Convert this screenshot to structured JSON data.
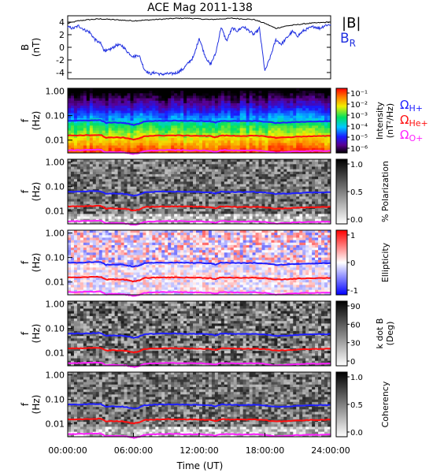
{
  "title": "ACE Mag 2011-138",
  "x_axis": {
    "label": "Time (UT)",
    "ticks": [
      "00:00:00",
      "06:00:00",
      "12:00:00",
      "18:00:00",
      "24:00:00"
    ],
    "range_hours": [
      0,
      24
    ]
  },
  "freq_axis": {
    "label_f": "f",
    "label_unit": "(Hz)",
    "ticks": [
      "1.00",
      "0.10",
      "0.01"
    ],
    "scale": "log",
    "range_hz": [
      0.003,
      1.3
    ]
  },
  "gyro_labels": {
    "h": "Ω",
    "h_sub": "H+",
    "he": "Ω",
    "he_sub": "He+",
    "o": "Ω",
    "o_sub": "O+"
  },
  "colors": {
    "h": "#2020ff",
    "he": "#ff1010",
    "o": "#ff20ff",
    "b_total": "#000000",
    "b_r": "#2030e0"
  },
  "chart_data": [
    {
      "type": "line",
      "ylabel_main": "B",
      "ylabel_unit": "(nT)",
      "ylim": [
        -5,
        5
      ],
      "yticks": [
        "4",
        "2",
        "0",
        "-2",
        "-4"
      ],
      "legend": [
        "|B|",
        "B"
      ],
      "legend_sub": "R",
      "series": [
        {
          "name": "|B|",
          "x_hours": [
            0,
            1,
            2,
            3,
            4,
            5,
            6,
            7,
            8,
            9,
            10,
            11,
            12,
            13,
            14,
            15,
            16,
            17,
            18,
            19,
            20,
            21,
            22,
            23,
            24
          ],
          "values": [
            3.8,
            4.2,
            4.4,
            4.5,
            4.4,
            4.3,
            4.2,
            4.3,
            4.4,
            4.5,
            4.6,
            4.6,
            4.5,
            4.4,
            4.5,
            4.6,
            4.5,
            4.4,
            3.8,
            3.0,
            3.4,
            3.6,
            3.8,
            3.9,
            4.0
          ]
        },
        {
          "name": "B_R",
          "x_hours": [
            0,
            0.5,
            1,
            1.5,
            2,
            2.5,
            3,
            3.3,
            3.6,
            4,
            4.5,
            5,
            5.5,
            6,
            6.5,
            7,
            7.5,
            8,
            8.5,
            9,
            9.5,
            10,
            10.5,
            11,
            11.5,
            12,
            12.5,
            13,
            13.5,
            14,
            14.5,
            15,
            15.5,
            16,
            16.5,
            17,
            17.5,
            18,
            18.5,
            19,
            19.5,
            20,
            20.5,
            21,
            21.5,
            22,
            22.5,
            23,
            23.5,
            24
          ],
          "values": [
            3.2,
            3.0,
            3.4,
            2.8,
            2.4,
            1.2,
            0.6,
            -0.4,
            -0.6,
            -0.2,
            0.4,
            0.2,
            -0.8,
            -1.5,
            -1.2,
            -3.5,
            -4.2,
            -4.0,
            -4.3,
            -4.2,
            -4.2,
            -4.0,
            -3.5,
            -2.5,
            -1.5,
            1.5,
            -1.2,
            -2.8,
            -1.0,
            3.2,
            1.0,
            3.0,
            2.6,
            3.3,
            2.7,
            2.0,
            3.0,
            -3.8,
            -1.5,
            1.2,
            0.5,
            1.5,
            2.5,
            1.8,
            2.6,
            3.0,
            3.3,
            3.0,
            3.5,
            3.6
          ]
        }
      ]
    },
    {
      "type": "heatmap",
      "ylabel": "f (Hz)",
      "colorbar_label_line1": "Intensity",
      "colorbar_label_line2": "(nT²/Hz)",
      "colorbar_ticks": [
        "10⁻¹",
        "10⁻²",
        "10⁻³",
        "10⁻⁴",
        "10⁻⁵",
        "10⁻⁶"
      ]
    },
    {
      "type": "heatmap",
      "ylabel": "f (Hz)",
      "colorbar_label": "% Polarization",
      "colorbar_ticks": [
        "1.0",
        "0.5",
        "0.0"
      ]
    },
    {
      "type": "heatmap",
      "ylabel": "f (Hz)",
      "colorbar_label": "Ellipticity",
      "colorbar_ticks": [
        "1",
        "0",
        "-1"
      ]
    },
    {
      "type": "heatmap",
      "ylabel": "f (Hz)",
      "colorbar_label_line1": "k dot B",
      "colorbar_label_line2": "(Deg)",
      "colorbar_ticks": [
        "90",
        "60",
        "30",
        "0"
      ]
    },
    {
      "type": "heatmap",
      "ylabel": "f (Hz)",
      "colorbar_label": "Coherency",
      "colorbar_ticks": [
        "1.0",
        "0.5",
        "0.0"
      ]
    }
  ],
  "gyrofrequencies": {
    "x_hours": [
      0,
      1,
      2,
      3,
      3.5,
      4,
      5,
      5.5,
      6,
      6.5,
      7,
      8,
      9,
      10,
      11,
      12,
      13,
      13.5,
      14,
      15,
      16,
      17,
      18,
      19,
      20,
      21,
      22,
      23,
      24
    ],
    "h_plus_hz": [
      0.062,
      0.062,
      0.064,
      0.065,
      0.05,
      0.052,
      0.051,
      0.047,
      0.042,
      0.046,
      0.058,
      0.061,
      0.062,
      0.062,
      0.061,
      0.06,
      0.058,
      0.052,
      0.062,
      0.06,
      0.059,
      0.06,
      0.057,
      0.05,
      0.052,
      0.055,
      0.057,
      0.058,
      0.059
    ],
    "he_plus_hz": [
      0.0155,
      0.0155,
      0.016,
      0.0163,
      0.0125,
      0.013,
      0.0128,
      0.0118,
      0.0105,
      0.0115,
      0.0145,
      0.0152,
      0.0155,
      0.0155,
      0.0152,
      0.015,
      0.0145,
      0.013,
      0.0155,
      0.015,
      0.0148,
      0.015,
      0.0143,
      0.0125,
      0.013,
      0.0138,
      0.0143,
      0.0145,
      0.0148
    ],
    "o_plus_hz": [
      0.0039,
      0.0039,
      0.004,
      0.0041,
      0.0031,
      0.0033,
      0.0032,
      0.003,
      0.0027,
      0.0029,
      0.0036,
      0.0038,
      0.0039,
      0.0039,
      0.0038,
      0.0038,
      0.0036,
      0.0033,
      0.0039,
      0.0038,
      0.0037,
      0.0038,
      0.0036,
      0.0031,
      0.0033,
      0.0035,
      0.0036,
      0.0036,
      0.0037
    ]
  }
}
